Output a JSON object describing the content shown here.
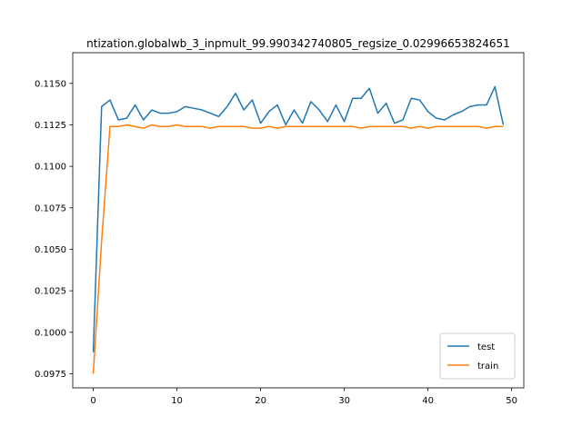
{
  "chart_data": {
    "type": "line",
    "title": "ntization.globalwb_3_inpmult_99.990342740805_regsize_0.02996653824651",
    "xlabel": "",
    "ylabel": "",
    "xlim": [
      -2.45,
      51.45
    ],
    "ylim": [
      0.09665,
      0.11685
    ],
    "xticks": [
      0,
      10,
      20,
      30,
      40,
      50
    ],
    "xtick_labels": [
      "0",
      "10",
      "20",
      "30",
      "40",
      "50"
    ],
    "yticks": [
      0.0975,
      0.1,
      0.1025,
      0.105,
      0.1075,
      0.11,
      0.1125,
      0.115
    ],
    "ytick_labels": [
      "0.0975",
      "0.1000",
      "0.1025",
      "0.1050",
      "0.1075",
      "0.1100",
      "0.1125",
      "0.1150"
    ],
    "grid": false,
    "legend_position": "lower-right",
    "x": [
      0,
      1,
      2,
      3,
      4,
      5,
      6,
      7,
      8,
      9,
      10,
      11,
      12,
      13,
      14,
      15,
      16,
      17,
      18,
      19,
      20,
      21,
      22,
      23,
      24,
      25,
      26,
      27,
      28,
      29,
      30,
      31,
      32,
      33,
      34,
      35,
      36,
      37,
      38,
      39,
      40,
      41,
      42,
      43,
      44,
      45,
      46,
      47,
      48,
      49
    ],
    "series": [
      {
        "name": "test",
        "color": "#1f77b4",
        "values": [
          0.0988,
          0.1136,
          0.114,
          0.1128,
          0.1129,
          0.1137,
          0.1128,
          0.1134,
          0.1132,
          0.1132,
          0.1133,
          0.1136,
          0.1135,
          0.1134,
          0.1132,
          0.113,
          0.1136,
          0.1144,
          0.1134,
          0.114,
          0.1126,
          0.1133,
          0.1137,
          0.1125,
          0.1134,
          0.1126,
          0.1139,
          0.1134,
          0.1127,
          0.1137,
          0.1127,
          0.1141,
          0.1141,
          0.1147,
          0.1132,
          0.1138,
          0.1126,
          0.1128,
          0.1141,
          0.114,
          0.1133,
          0.1129,
          0.1128,
          0.1131,
          0.1133,
          0.1136,
          0.1137,
          0.1137,
          0.1148,
          0.1125
        ]
      },
      {
        "name": "train",
        "color": "#ff7f0e",
        "values": [
          0.0975,
          0.1055,
          0.1124,
          0.1124,
          0.1125,
          0.1124,
          0.1123,
          0.1125,
          0.1124,
          0.1124,
          0.1125,
          0.1124,
          0.1124,
          0.1124,
          0.1123,
          0.1124,
          0.1124,
          0.1124,
          0.1124,
          0.1123,
          0.1123,
          0.1124,
          0.1123,
          0.1124,
          0.1124,
          0.1124,
          0.1124,
          0.1124,
          0.1124,
          0.1124,
          0.1124,
          0.1124,
          0.1123,
          0.1124,
          0.1124,
          0.1124,
          0.1124,
          0.1124,
          0.1123,
          0.1124,
          0.1123,
          0.1124,
          0.1124,
          0.1124,
          0.1124,
          0.1124,
          0.1124,
          0.1123,
          0.1124,
          0.1124
        ]
      }
    ]
  }
}
